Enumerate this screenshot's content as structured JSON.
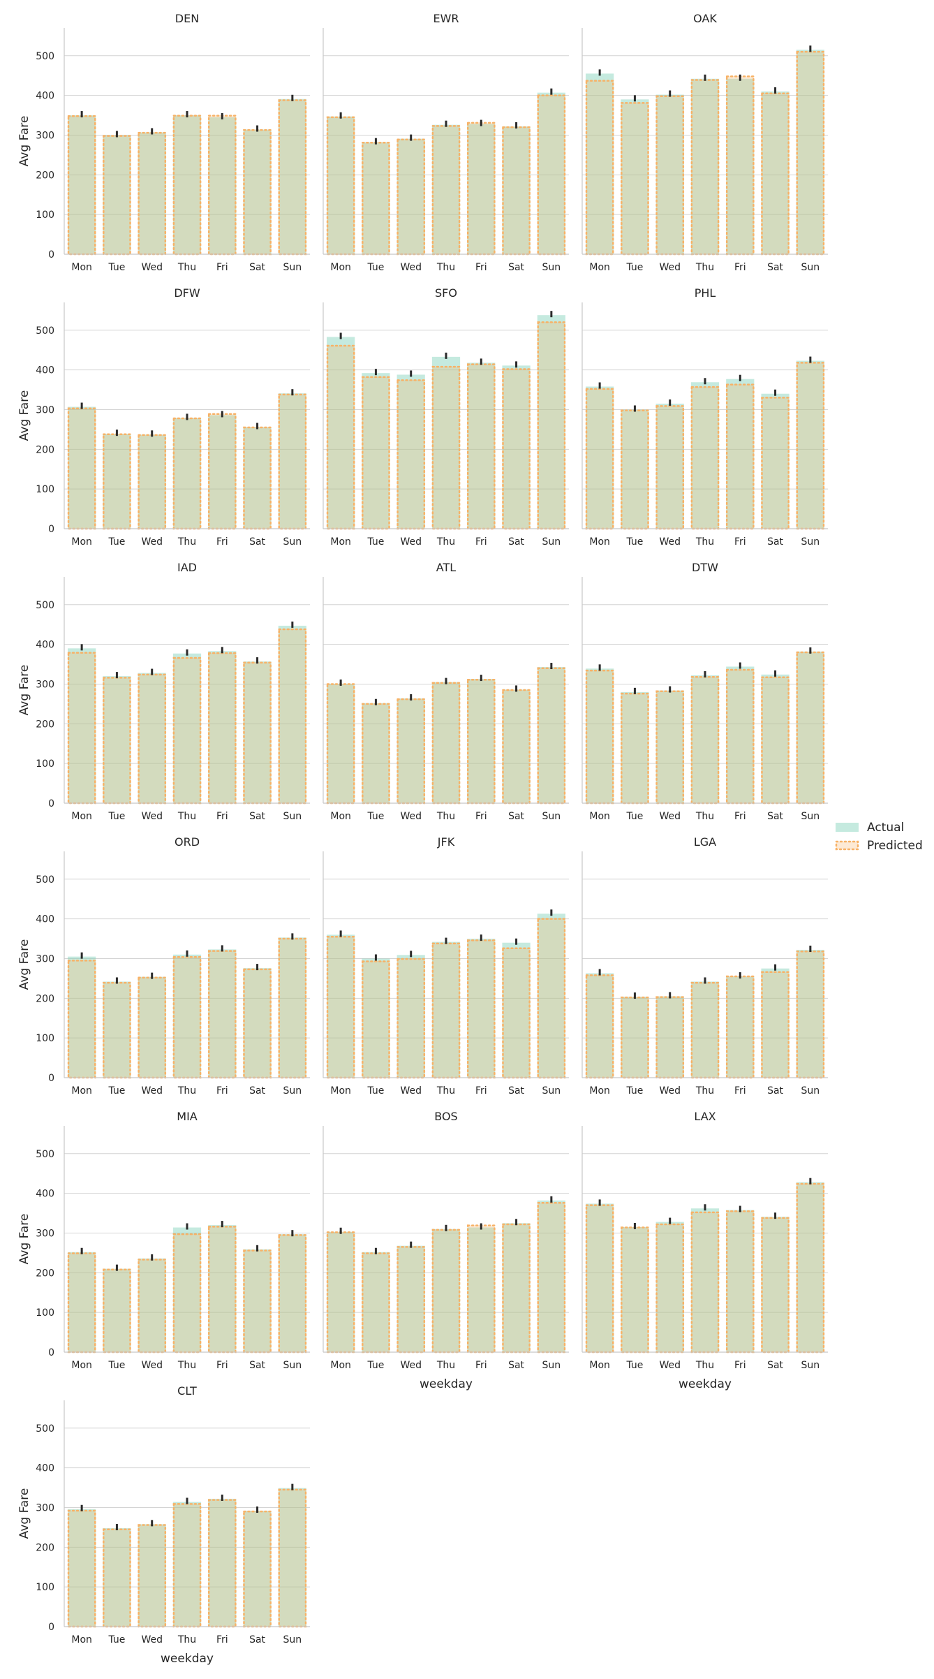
{
  "chart_data": {
    "type": "bar",
    "layout": "facet-grid",
    "facet_columns": 3,
    "categories": [
      "Mon",
      "Tue",
      "Wed",
      "Thu",
      "Fri",
      "Sat",
      "Sun"
    ],
    "xlabel": "weekday",
    "ylabel": "Avg Fare",
    "ylim": [
      0,
      570
    ],
    "yticks": [
      0,
      100,
      200,
      300,
      400,
      500
    ],
    "grid": "horizontal",
    "legend": {
      "placement": "right",
      "entries": [
        {
          "name": "Actual",
          "color": "#7fd1b9",
          "style": "filled"
        },
        {
          "name": "Predicted",
          "color": "#f7b267",
          "style": "dotted-outline"
        }
      ]
    },
    "facets": [
      {
        "title": "DEN",
        "actual": [
          350,
          300,
          307,
          350,
          345,
          314,
          391
        ],
        "predicted": [
          348,
          298,
          306,
          349,
          349,
          313,
          388
        ]
      },
      {
        "title": "EWR",
        "actual": [
          347,
          282,
          291,
          326,
          328,
          322,
          407
        ],
        "predicted": [
          345,
          281,
          289,
          323,
          331,
          320,
          400
        ]
      },
      {
        "title": "OAK",
        "actual": [
          455,
          390,
          402,
          442,
          442,
          410,
          515
        ],
        "predicted": [
          437,
          381,
          398,
          439,
          448,
          405,
          510
        ]
      },
      {
        "title": "DFW",
        "actual": [
          307,
          239,
          237,
          279,
          286,
          256,
          341
        ],
        "predicted": [
          303,
          238,
          236,
          278,
          289,
          255,
          338
        ]
      },
      {
        "title": "SFO",
        "actual": [
          483,
          392,
          388,
          433,
          418,
          411,
          538
        ],
        "predicted": [
          461,
          382,
          374,
          408,
          414,
          402,
          520
        ]
      },
      {
        "title": "PHL",
        "actual": [
          358,
          300,
          315,
          369,
          377,
          340,
          423
        ],
        "predicted": [
          352,
          298,
          309,
          357,
          363,
          330,
          418
        ]
      },
      {
        "title": "IAD",
        "actual": [
          390,
          320,
          328,
          377,
          383,
          357,
          447
        ],
        "predicted": [
          379,
          316,
          324,
          366,
          378,
          354,
          438
        ]
      },
      {
        "title": "ATL",
        "actual": [
          301,
          252,
          264,
          305,
          313,
          286,
          343
        ],
        "predicted": [
          300,
          250,
          262,
          303,
          311,
          285,
          340
        ]
      },
      {
        "title": "DTW",
        "actual": [
          339,
          280,
          284,
          322,
          344,
          324,
          382
        ],
        "predicted": [
          334,
          276,
          282,
          318,
          336,
          317,
          380
        ]
      },
      {
        "title": "ORD",
        "actual": [
          305,
          242,
          254,
          310,
          323,
          276,
          353
        ],
        "predicted": [
          295,
          239,
          252,
          304,
          319,
          273,
          350
        ]
      },
      {
        "title": "JFK",
        "actual": [
          360,
          300,
          309,
          342,
          350,
          340,
          413
        ],
        "predicted": [
          355,
          293,
          299,
          338,
          346,
          326,
          400
        ]
      },
      {
        "title": "LGA",
        "actual": [
          263,
          204,
          205,
          242,
          255,
          275,
          322
        ],
        "predicted": [
          258,
          202,
          203,
          239,
          255,
          266,
          318
        ]
      },
      {
        "title": "MIA",
        "actual": [
          252,
          210,
          236,
          314,
          320,
          259,
          297
        ],
        "predicted": [
          249,
          208,
          233,
          297,
          316,
          256,
          295
        ]
      },
      {
        "title": "BOS",
        "actual": [
          303,
          252,
          268,
          310,
          314,
          325,
          382
        ],
        "predicted": [
          302,
          249,
          265,
          308,
          319,
          322,
          376
        ]
      },
      {
        "title": "LAX",
        "actual": [
          374,
          315,
          328,
          362,
          358,
          341,
          428
        ],
        "predicted": [
          370,
          314,
          322,
          352,
          355,
          338,
          424
        ]
      },
      {
        "title": "CLT",
        "actual": [
          296,
          248,
          258,
          314,
          322,
          292,
          349
        ],
        "predicted": [
          292,
          245,
          256,
          309,
          319,
          290,
          345
        ]
      }
    ]
  }
}
